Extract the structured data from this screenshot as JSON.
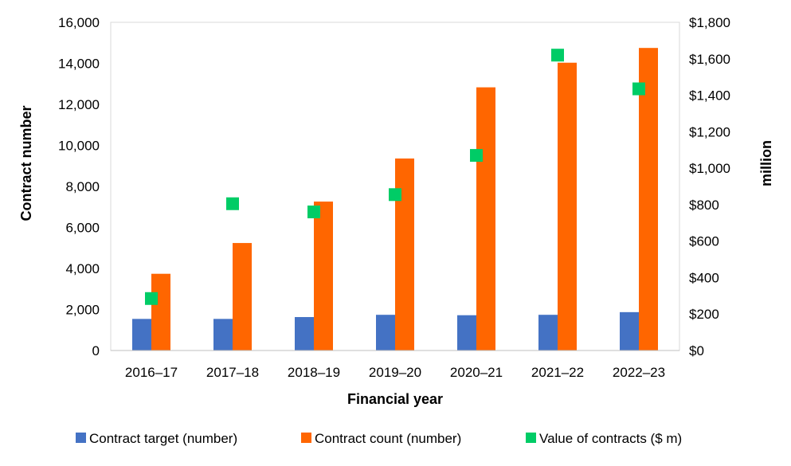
{
  "chart_data": {
    "type": "bar",
    "title": "",
    "xlabel": "Financial year",
    "ylabel": "Contract number",
    "y2label": "million",
    "categories": [
      "2016–17",
      "2017–18",
      "2018–19",
      "2019–20",
      "2020–21",
      "2021–22",
      "2022–23"
    ],
    "ylim": [
      0,
      16000
    ],
    "y2lim": [
      0,
      1800
    ],
    "y_ticks": [
      "0",
      "2,000",
      "4,000",
      "6,000",
      "8,000",
      "10,000",
      "12,000",
      "14,000",
      "16,000"
    ],
    "y2_ticks": [
      "$0",
      "$200",
      "$400",
      "$600",
      "$800",
      "$1,000",
      "$1,200",
      "$1,400",
      "$1,600",
      "$1,800"
    ],
    "series": [
      {
        "name": "Contract target (number)",
        "kind": "bar",
        "axis": "left",
        "color": "#4472C4",
        "values": [
          1540,
          1540,
          1630,
          1740,
          1720,
          1740,
          1870
        ]
      },
      {
        "name": "Contract count (number)",
        "kind": "bar",
        "axis": "left",
        "color": "#FF6600",
        "values": [
          3740,
          5240,
          7260,
          9360,
          12830,
          14030,
          14750
        ]
      },
      {
        "name": "Value of contracts ($ m)",
        "kind": "marker",
        "axis": "right",
        "color": "#00CC66",
        "values": [
          285,
          805,
          760,
          855,
          1070,
          1620,
          1435
        ]
      }
    ],
    "grid": false,
    "legend": "bottom"
  }
}
